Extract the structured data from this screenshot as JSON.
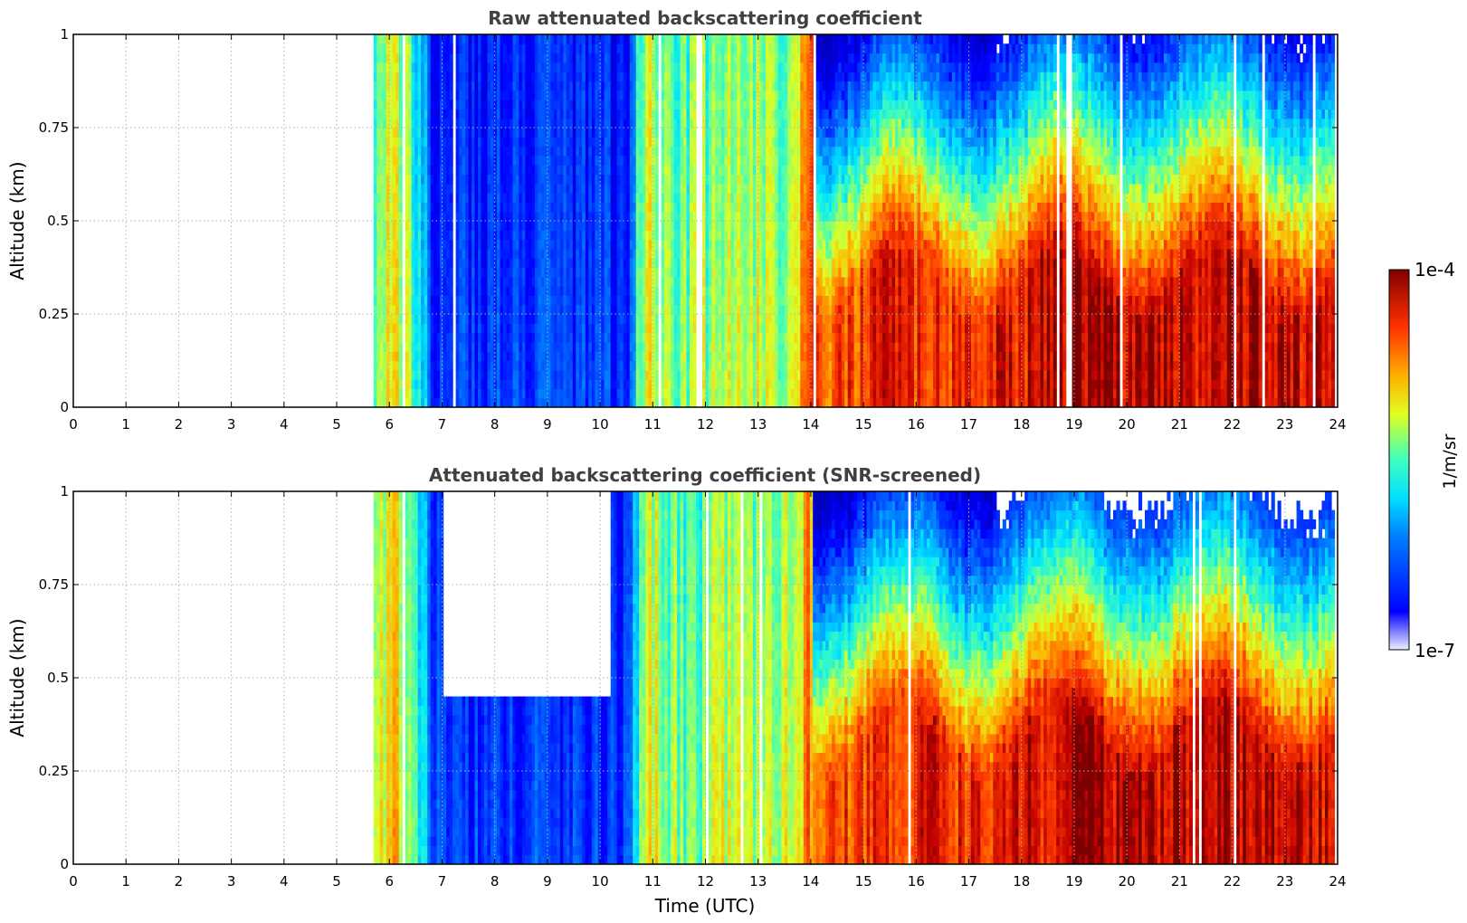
{
  "chart_data": {
    "type": "heatmap",
    "colormap": "jet",
    "x_values": [
      0,
      1,
      2,
      3,
      4,
      5,
      6,
      7,
      8,
      9,
      10,
      11,
      12,
      13,
      14,
      15,
      16,
      17,
      18,
      19,
      20,
      21,
      22,
      23,
      24
    ],
    "y_values": [
      0,
      0.25,
      0.5,
      0.75,
      1
    ],
    "xlim": [
      0,
      24
    ],
    "ylim": [
      0,
      1
    ],
    "grid": true,
    "panels": [
      {
        "title": "Raw attenuated backscattering coefficient",
        "ylabel": "Altitude (km)",
        "xlabel": "",
        "xticks": [
          "0",
          "1",
          "2",
          "3",
          "4",
          "5",
          "6",
          "7",
          "8",
          "9",
          "10",
          "11",
          "12",
          "13",
          "14",
          "15",
          "16",
          "17",
          "18",
          "19",
          "20",
          "21",
          "22",
          "23",
          "24"
        ],
        "yticks": [
          "0",
          "0.25",
          "0.5",
          "0.75",
          "1"
        ],
        "screened": false
      },
      {
        "title": "Attenuated backscattering coefficient (SNR-screened)",
        "ylabel": "Altitude (km)",
        "xlabel": "Time (UTC)",
        "xticks": [
          "0",
          "1",
          "2",
          "3",
          "4",
          "5",
          "6",
          "7",
          "8",
          "9",
          "10",
          "11",
          "12",
          "13",
          "14",
          "15",
          "16",
          "17",
          "18",
          "19",
          "20",
          "21",
          "22",
          "23",
          "24"
        ],
        "yticks": [
          "0",
          "0.25",
          "0.5",
          "0.75",
          "1"
        ],
        "screened": true
      }
    ],
    "colorbar": {
      "label": "1/m/sr",
      "max_label": "1e-4",
      "min_label": "1e-7",
      "scale": "log",
      "range": [
        1e-07,
        0.0001
      ]
    },
    "data_start_hour": 5.7,
    "data_end_hour": 23.9,
    "profile_level_by_hour": [
      {
        "t": 5.7,
        "level": 0.55
      },
      {
        "t": 6.0,
        "level": 0.72
      },
      {
        "t": 6.6,
        "level": 0.45
      },
      {
        "t": 6.8,
        "level": 0.2
      },
      {
        "t": 10.5,
        "level": 0.2
      },
      {
        "t": 10.8,
        "level": 0.65
      },
      {
        "t": 11.5,
        "level": 0.55
      },
      {
        "t": 12.5,
        "level": 0.6
      },
      {
        "t": 13.5,
        "level": 0.6
      },
      {
        "t": 14.0,
        "level": 0.8
      },
      {
        "t": 15.5,
        "level": 0.88
      },
      {
        "t": 17.0,
        "level": 0.86
      },
      {
        "t": 19.0,
        "level": 0.95
      },
      {
        "t": 23.9,
        "level": 0.93
      }
    ]
  }
}
